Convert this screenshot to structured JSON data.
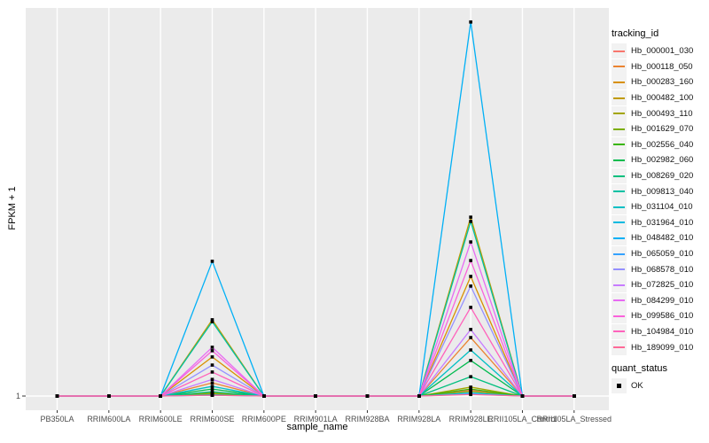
{
  "chart_data": {
    "type": "line",
    "title": "",
    "xlabel": "sample_name",
    "ylabel": "FPKM + 1",
    "categories": [
      "PB350LA",
      "RRIM600LA",
      "RRIM600LE",
      "RRIM600SE",
      "RRIM600PE",
      "RRIM901LA",
      "RRIM928BA",
      "RRIM928LA",
      "RRIM928LE",
      "RRII105LA_Control",
      "RRII105LA_Stressed"
    ],
    "y_tick_labels": [
      "1"
    ],
    "value_unit": "relative height above baseline (0 = FPKM+1 of 1; 1 = top of panel); only tick labeled on axis is 1",
    "legend_position": "right",
    "grid": "vertical white gridline per category, horizontal white gridline at y tick 1",
    "marker": {
      "shape": "small-black-square",
      "color": "#000000"
    },
    "layout": {
      "panel_bg": "#EBEBEB",
      "grid_color": "#FFFFFF",
      "tick_text_color": "#4D4D4D",
      "legend_key_bg": "#F2F2F2"
    },
    "legend": {
      "tracking_title": "tracking_id",
      "quant_title": "quant_status",
      "quant_items": [
        {
          "label": "OK",
          "key": "black-square"
        }
      ]
    },
    "series": [
      {
        "name": "Hb_000001_030",
        "color": "#F8766D",
        "values": [
          0,
          0,
          0,
          0.006,
          0,
          0,
          0,
          0,
          0.015,
          0,
          0
        ]
      },
      {
        "name": "Hb_000118_050",
        "color": "#EA8331",
        "values": [
          0,
          0,
          0,
          0.034,
          0,
          0,
          0,
          0,
          0.151,
          0,
          0
        ]
      },
      {
        "name": "Hb_000283_160",
        "color": "#D89000",
        "values": [
          0,
          0,
          0,
          0.101,
          0,
          0,
          0,
          0,
          0.309,
          0,
          0
        ]
      },
      {
        "name": "Hb_000482_100",
        "color": "#C09B00",
        "values": [
          0,
          0,
          0,
          0.197,
          0,
          0,
          0,
          0,
          0.462,
          0,
          0
        ]
      },
      {
        "name": "Hb_000493_110",
        "color": "#A3A500",
        "values": [
          0,
          0,
          0,
          0.008,
          0,
          0,
          0,
          0,
          0.023,
          0,
          0
        ]
      },
      {
        "name": "Hb_001629_070",
        "color": "#7CAE00",
        "values": [
          0,
          0,
          0,
          0.005,
          0,
          0,
          0,
          0,
          0.012,
          0,
          0
        ]
      },
      {
        "name": "Hb_002556_040",
        "color": "#39B600",
        "values": [
          0,
          0,
          0,
          0.004,
          0,
          0,
          0,
          0,
          0.018,
          0,
          0
        ]
      },
      {
        "name": "Hb_002982_060",
        "color": "#00BB4E",
        "values": [
          0,
          0,
          0,
          0.018,
          0,
          0,
          0,
          0,
          0.092,
          0,
          0
        ]
      },
      {
        "name": "Hb_008269_020",
        "color": "#00BF7D",
        "values": [
          0,
          0,
          0,
          0.011,
          0,
          0,
          0,
          0,
          0.05,
          0,
          0
        ]
      },
      {
        "name": "Hb_009813_040",
        "color": "#00C1A3",
        "values": [
          0,
          0,
          0,
          0.192,
          0,
          0,
          0,
          0,
          0.451,
          0,
          0
        ]
      },
      {
        "name": "Hb_031104_010",
        "color": "#00BFC4",
        "values": [
          0,
          0,
          0,
          0.025,
          0,
          0,
          0,
          0,
          0.119,
          0,
          0
        ]
      },
      {
        "name": "Hb_031964_010",
        "color": "#00BAE0",
        "values": [
          0,
          0,
          0,
          0.003,
          0,
          0,
          0,
          0,
          0.008,
          0,
          0
        ]
      },
      {
        "name": "Hb_048482_010",
        "color": "#00B0F6",
        "values": [
          0,
          0,
          0,
          0.348,
          0,
          0,
          0,
          0,
          0.966,
          0,
          0
        ]
      },
      {
        "name": "Hb_065059_010",
        "color": "#35A2FF",
        "values": [
          0,
          0,
          0,
          0.002,
          0,
          0,
          0,
          0,
          0.005,
          0,
          0
        ]
      },
      {
        "name": "Hb_068578_010",
        "color": "#9590FF",
        "values": [
          0,
          0,
          0,
          0.08,
          0,
          0,
          0,
          0,
          0.284,
          0,
          0
        ]
      },
      {
        "name": "Hb_072825_010",
        "color": "#C77CFF",
        "values": [
          0,
          0,
          0,
          0.043,
          0,
          0,
          0,
          0,
          0.172,
          0,
          0
        ]
      },
      {
        "name": "Hb_084299_010",
        "color": "#E76BF3",
        "values": [
          0,
          0,
          0,
          0.126,
          0,
          0,
          0,
          0,
          0.398,
          0,
          0
        ]
      },
      {
        "name": "Hb_099586_010",
        "color": "#FA62DB",
        "values": [
          0,
          0,
          0,
          0.117,
          0,
          0,
          0,
          0,
          0.35,
          0,
          0
        ]
      },
      {
        "name": "Hb_104984_010",
        "color": "#FF62BC",
        "values": [
          0,
          0,
          0,
          0.062,
          0,
          0,
          0,
          0,
          0.229,
          0,
          0
        ]
      },
      {
        "name": "Hb_189099_010",
        "color": "#FF6A98",
        "values": [
          0,
          0,
          0,
          0.002,
          0,
          0,
          0,
          0,
          0.004,
          0,
          0
        ]
      }
    ]
  }
}
